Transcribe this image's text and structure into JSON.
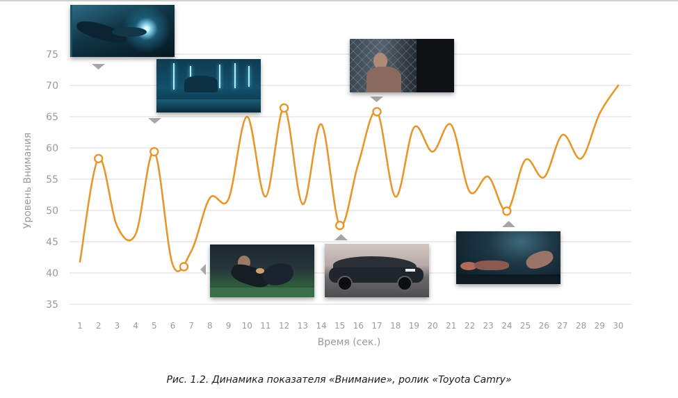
{
  "caption": "Рис. 1.2.  Динамика показателя «Внимание», ролик «Toyota Camry»",
  "colors": {
    "line": "#e8962a",
    "grid": "#d9d9d9",
    "marker": "#a6a6a6",
    "text": "#9a9a9a"
  },
  "chart_data": {
    "type": "line",
    "xlabel": "Время (сек.)",
    "ylabel": "Уровень Внимания",
    "ylim": [
      35,
      75
    ],
    "yticks": [
      35,
      40,
      45,
      50,
      55,
      60,
      65,
      70,
      75
    ],
    "xticks": [
      1,
      2,
      3,
      4,
      5,
      6,
      7,
      8,
      9,
      10,
      11,
      12,
      13,
      14,
      15,
      16,
      17,
      18,
      19,
      20,
      21,
      22,
      23,
      24,
      25,
      26,
      27,
      28,
      29,
      30
    ],
    "grid": true,
    "series": [
      {
        "values": [
          [
            1,
            41.8
          ],
          [
            2,
            58.3
          ],
          [
            3,
            47.5
          ],
          [
            4,
            46.2
          ],
          [
            5,
            59.4
          ],
          [
            6,
            41.3
          ],
          [
            7,
            43.5
          ],
          [
            8,
            52.0
          ],
          [
            9,
            51.8
          ],
          [
            10,
            65.0
          ],
          [
            11,
            52.2
          ],
          [
            12,
            66.4
          ],
          [
            13,
            51.0
          ],
          [
            14,
            63.8
          ],
          [
            15,
            47.6
          ],
          [
            16,
            57.5
          ],
          [
            17,
            65.8
          ],
          [
            18,
            52.2
          ],
          [
            19,
            63.3
          ],
          [
            20,
            59.4
          ],
          [
            21,
            63.7
          ],
          [
            22,
            53.0
          ],
          [
            23,
            55.4
          ],
          [
            24,
            49.9
          ],
          [
            25,
            58.1
          ],
          [
            26,
            55.3
          ],
          [
            27,
            62.1
          ],
          [
            28,
            58.3
          ],
          [
            29,
            65.5
          ],
          [
            30,
            70.0
          ]
        ],
        "highlighted": [
          [
            2,
            58.3
          ],
          [
            5,
            59.4
          ],
          [
            6.6,
            41.0
          ],
          [
            12,
            66.4
          ],
          [
            15,
            47.6
          ],
          [
            17,
            65.8
          ],
          [
            24,
            49.9
          ]
        ]
      }
    ],
    "frames": [
      {
        "name": "hands-scene",
        "at": 2,
        "arrow": "down"
      },
      {
        "name": "parking-scene",
        "at": 5,
        "arrow": "down"
      },
      {
        "name": "rugby-scene",
        "at": 6.6,
        "arrow": "left"
      },
      {
        "name": "cage-fight-scene",
        "at": 17,
        "arrow": "down"
      },
      {
        "name": "camry-car-scene",
        "at": 15,
        "arrow": "up"
      },
      {
        "name": "knockout-scene",
        "at": 24,
        "arrow": "up"
      }
    ]
  }
}
